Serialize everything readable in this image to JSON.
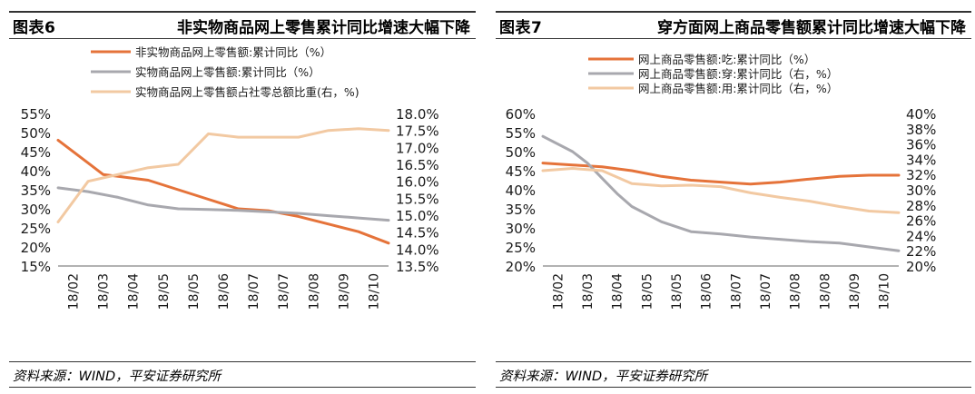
{
  "panels": [
    {
      "fig_no": "图表6",
      "fig_title": "非实物商品网上零售累计同比增速大幅下降",
      "source": "资料来源：WIND，平安证券研究所"
    },
    {
      "fig_no": "图表7",
      "fig_title": "穿方面网上商品零售额累计同比增速大幅下降",
      "source": "资料来源：WIND，平安证券研究所"
    }
  ],
  "colors": {
    "orange": "#E5733A",
    "gray": "#A8A8AE",
    "peach": "#F2C9A2"
  },
  "chart_data": [
    {
      "type": "line",
      "title": "非实物商品网上零售累计同比增速大幅下降",
      "categories": [
        "18/02",
        "18/03",
        "18/04",
        "18/05",
        "18/05",
        "18/06",
        "18/07",
        "18/07",
        "18/08",
        "18/09",
        "18/10"
      ],
      "x_tick_labels": [
        "18/02",
        "18/03",
        "18/04",
        "18/05",
        "18/05",
        "18/06",
        "18/07",
        "18/07",
        "18/08",
        "18/09",
        "18/10"
      ],
      "left_axis": {
        "ylim": [
          15,
          55
        ],
        "ticks": [
          "55%",
          "50%",
          "45%",
          "40%",
          "35%",
          "30%",
          "25%",
          "20%",
          "15%"
        ]
      },
      "right_axis": {
        "ylim": [
          13.5,
          18.0
        ],
        "ticks": [
          "18.0%",
          "17.5%",
          "17.0%",
          "16.5%",
          "16.0%",
          "15.5%",
          "15.0%",
          "14.5%",
          "14.0%",
          "13.5%"
        ]
      },
      "series": [
        {
          "name": "非实物商品网上零售额:累计同比（%）",
          "axis": "left",
          "color_key": "orange",
          "x": [
            0,
            1,
            1.5,
            2,
            3,
            4,
            5,
            6,
            7,
            8,
            9,
            10,
            11
          ],
          "values": [
            48,
            42,
            39,
            38.5,
            37.5,
            35,
            32.5,
            30,
            29.5,
            28,
            26,
            24,
            21
          ]
        },
        {
          "name": "实物商品网上零售额:累计同比（%）",
          "axis": "left",
          "color_key": "gray",
          "x": [
            0,
            1,
            2,
            3,
            4,
            5,
            6,
            7,
            8,
            9,
            10,
            11
          ],
          "values": [
            35.5,
            34.5,
            33,
            31,
            30,
            29.8,
            29.6,
            29.2,
            28.8,
            28.2,
            27.6,
            27
          ]
        },
        {
          "name": "实物商品网上零售额占社零总额比重(右，%)",
          "axis": "right",
          "color_key": "peach",
          "x": [
            0,
            1,
            2,
            3,
            4,
            5,
            6,
            7,
            8,
            9,
            10,
            11
          ],
          "values": [
            14.8,
            16.0,
            16.2,
            16.4,
            16.5,
            17.4,
            17.3,
            17.3,
            17.3,
            17.5,
            17.55,
            17.5
          ]
        }
      ]
    },
    {
      "type": "line",
      "title": "穿方面网上商品零售额累计同比增速大幅下降",
      "categories": [
        "18/02",
        "18/03",
        "18/04",
        "18/05",
        "18/05",
        "18/06",
        "18/07",
        "18/07",
        "18/08",
        "18/08",
        "18/09",
        "18/10"
      ],
      "x_tick_labels": [
        "18/02",
        "18/03",
        "18/04",
        "18/05",
        "18/05",
        "18/06",
        "18/07",
        "18/07",
        "18/08",
        "18/08",
        "18/09",
        "18/10"
      ],
      "left_axis": {
        "ylim": [
          20,
          60
        ],
        "ticks": [
          "60%",
          "55%",
          "50%",
          "45%",
          "40%",
          "35%",
          "30%",
          "25%",
          "20%"
        ]
      },
      "right_axis": {
        "ylim": [
          20,
          40
        ],
        "ticks": [
          "40%",
          "38%",
          "36%",
          "34%",
          "32%",
          "30%",
          "28%",
          "26%",
          "24%",
          "22%",
          "20%"
        ]
      },
      "series": [
        {
          "name": "网上商品零售额:吃:累计同比（%）",
          "axis": "left",
          "color_key": "orange",
          "x": [
            0,
            1,
            2,
            3,
            4,
            5,
            6,
            7,
            8,
            9,
            10,
            11,
            12
          ],
          "values": [
            47,
            46.5,
            46,
            45,
            43.5,
            42.5,
            42,
            41.5,
            42,
            42.8,
            43.5,
            43.8,
            43.8
          ]
        },
        {
          "name": "网上商品零售额:穿:累计同比（右，%）",
          "axis": "right",
          "color_key": "gray",
          "x": [
            0,
            1,
            1.5,
            2,
            2.5,
            3,
            4,
            5,
            6,
            7,
            8,
            9,
            10,
            11,
            12
          ],
          "values": [
            37,
            35,
            33.5,
            31.5,
            29.5,
            27.8,
            25.8,
            24.5,
            24.2,
            23.8,
            23.5,
            23.2,
            23,
            22.5,
            22
          ]
        },
        {
          "name": "网上商品零售额:用:累计同比（右，%）",
          "axis": "right",
          "color_key": "peach",
          "x": [
            0,
            1,
            2,
            3,
            4,
            5,
            6,
            7,
            8,
            9,
            10,
            11,
            12
          ],
          "values": [
            32.5,
            32.8,
            32.5,
            30.8,
            30.5,
            30.6,
            30.4,
            29.6,
            29,
            28.5,
            27.8,
            27.2,
            27
          ]
        }
      ]
    }
  ]
}
